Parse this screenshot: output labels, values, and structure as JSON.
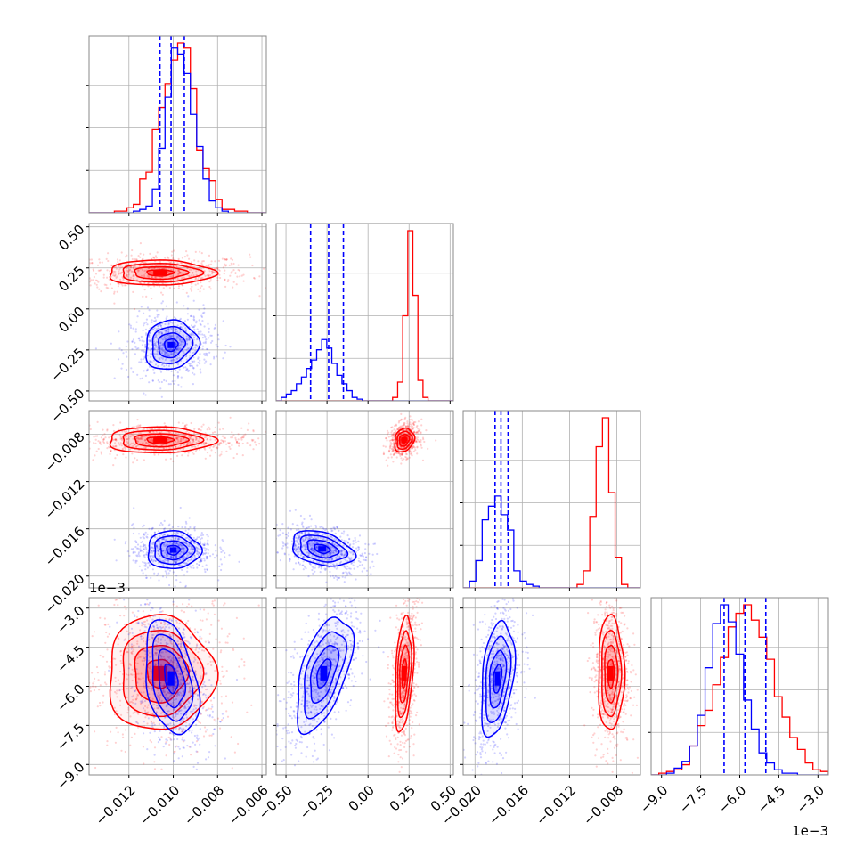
{
  "colors": {
    "red": "#ff0000",
    "blue": "#0000ff",
    "grid": "#b0b0b0",
    "frame": "#888888"
  },
  "chart_data": {
    "type": "corner",
    "grid": true,
    "series": [
      {
        "color": "red"
      },
      {
        "color": "blue"
      }
    ],
    "params": [
      {
        "range": [
          -0.0138,
          -0.0058
        ],
        "ticks": [
          -0.012,
          -0.01,
          -0.008,
          -0.006
        ],
        "tick_labels": [
          "−0.012",
          "−0.010",
          "−0.008",
          "−0.006"
        ],
        "offset_label": ""
      },
      {
        "range": [
          -0.56,
          0.52
        ],
        "ticks": [
          -0.5,
          -0.25,
          0.0,
          0.25,
          0.5
        ],
        "tick_labels": [
          "−0.50",
          "−0.25",
          "0.00",
          "0.25",
          "0.50"
        ],
        "offset_label": ""
      },
      {
        "range": [
          -0.021,
          -0.006
        ],
        "ticks": [
          -0.02,
          -0.016,
          -0.012,
          -0.008
        ],
        "tick_labels": [
          "−0.020",
          "−0.016",
          "−0.012",
          "−0.008"
        ],
        "offset_label": ""
      },
      {
        "range": [
          -0.0094,
          -0.0026
        ],
        "ticks": [
          -0.009,
          -0.0075,
          -0.006,
          -0.0045,
          -0.003
        ],
        "tick_labels": [
          "−9.0",
          "−7.5",
          "−6.0",
          "−4.5",
          "−3.0"
        ],
        "offset_label": "1e−3"
      }
    ],
    "quantiles": [
      [
        -0.0106,
        -0.0101,
        -0.0095
      ],
      [
        -0.35,
        -0.24,
        -0.15
      ],
      [
        -0.0183,
        -0.0178,
        -0.0172
      ],
      [
        -0.0066,
        -0.0058,
        -0.005
      ]
    ],
    "histograms": [
      {
        "edges": [
          -0.0138,
          -0.0058
        ],
        "red": [
          0.0,
          0.0,
          0.0,
          0.0,
          0.01,
          0.01,
          0.03,
          0.05,
          0.2,
          0.24,
          0.49,
          0.62,
          0.76,
          0.9,
          1.0,
          0.97,
          0.73,
          0.37,
          0.26,
          0.19,
          0.08,
          0.02,
          0.02,
          0.01,
          0.01,
          0.0,
          0.0,
          0.0
        ],
        "blue": [
          0.0,
          0.0,
          0.0,
          0.0,
          0.0,
          0.0,
          0.0,
          0.01,
          0.02,
          0.04,
          0.14,
          0.38,
          0.68,
          0.97,
          0.93,
          0.82,
          0.58,
          0.39,
          0.2,
          0.07,
          0.03,
          0.01,
          0.0,
          0.0,
          0.0,
          0.0,
          0.0,
          0.0
        ]
      },
      {
        "edges": [
          -0.56,
          0.52
        ],
        "red": [
          0,
          0,
          0,
          0,
          0,
          0,
          0,
          0,
          0,
          0,
          0,
          0,
          0,
          0,
          0,
          0,
          0,
          0,
          0,
          0,
          0,
          0,
          0.0,
          0.02,
          0.11,
          0.5,
          1.0,
          0.62,
          0.12,
          0.02,
          0,
          0,
          0,
          0,
          0
        ],
        "blue": [
          0,
          0.02,
          0.04,
          0.06,
          0.1,
          0.14,
          0.19,
          0.24,
          0.3,
          0.36,
          0.31,
          0.22,
          0.15,
          0.1,
          0.06,
          0.02,
          0.01,
          0,
          0,
          0,
          0,
          0,
          0,
          0,
          0,
          0,
          0,
          0,
          0,
          0,
          0,
          0,
          0,
          0,
          0
        ]
      },
      {
        "edges": [
          -0.021,
          -0.006
        ],
        "red": [
          0,
          0,
          0,
          0,
          0,
          0,
          0,
          0,
          0,
          0,
          0,
          0,
          0,
          0,
          0,
          0,
          0,
          0,
          0.02,
          0.1,
          0.42,
          0.83,
          1.0,
          0.56,
          0.18,
          0.02,
          0,
          0
        ],
        "blue": [
          0,
          0.04,
          0.16,
          0.4,
          0.48,
          0.54,
          0.43,
          0.34,
          0.1,
          0.04,
          0.02,
          0.01,
          0,
          0,
          0,
          0,
          0,
          0,
          0,
          0,
          0,
          0,
          0,
          0,
          0,
          0,
          0,
          0
        ]
      },
      {
        "edges": [
          -0.0094,
          -0.0026
        ],
        "red": [
          0.0,
          0.01,
          0.02,
          0.03,
          0.06,
          0.17,
          0.29,
          0.38,
          0.53,
          0.69,
          0.87,
          0.95,
          1.0,
          0.91,
          0.81,
          0.68,
          0.46,
          0.34,
          0.22,
          0.15,
          0.07,
          0.03,
          0.02
        ],
        "blue": [
          0.0,
          0.0,
          0.01,
          0.04,
          0.08,
          0.17,
          0.35,
          0.63,
          0.89,
          1.0,
          0.9,
          0.71,
          0.44,
          0.27,
          0.13,
          0.07,
          0.03,
          0.01,
          0.01,
          0.0,
          0.0,
          0.0,
          0.0
        ]
      }
    ],
    "clusters": [
      {
        "row": 1,
        "col": 0,
        "color": "red",
        "center": [
          -0.0106,
          0.22
        ],
        "sigma": [
          0.0012,
          0.038
        ],
        "rho": 0.0,
        "spread": [
          0.002,
          0.055
        ]
      },
      {
        "row": 1,
        "col": 0,
        "color": "blue",
        "center": [
          -0.0101,
          -0.22
        ],
        "sigma": [
          0.0006,
          0.075
        ],
        "rho": 0.1,
        "spread": [
          0.0009,
          0.1
        ]
      },
      {
        "row": 2,
        "col": 0,
        "color": "red",
        "center": [
          -0.0106,
          -0.0085
        ],
        "sigma": [
          0.0012,
          0.00055
        ],
        "rho": 0.0,
        "spread": [
          0.002,
          0.0007
        ]
      },
      {
        "row": 2,
        "col": 0,
        "color": "blue",
        "center": [
          -0.01,
          -0.0178
        ],
        "sigma": [
          0.0006,
          0.0008
        ],
        "rho": 0.0,
        "spread": [
          0.0009,
          0.001
        ]
      },
      {
        "row": 2,
        "col": 1,
        "color": "red",
        "center": [
          0.22,
          -0.0085
        ],
        "sigma": [
          0.03,
          0.0005
        ],
        "rho": 0.2,
        "spread": [
          0.045,
          0.0007
        ]
      },
      {
        "row": 2,
        "col": 1,
        "color": "blue",
        "center": [
          -0.28,
          -0.0177
        ],
        "sigma": [
          0.095,
          0.00075
        ],
        "rho": -0.35,
        "spread": [
          0.13,
          0.001
        ]
      },
      {
        "row": 3,
        "col": 0,
        "color": "red",
        "center": [
          -0.0106,
          -0.0055
        ],
        "sigma": [
          0.0012,
          0.0011
        ],
        "rho": 0.0,
        "spread": [
          0.0018,
          0.0015
        ]
      },
      {
        "row": 3,
        "col": 0,
        "color": "blue",
        "center": [
          -0.0101,
          -0.0057
        ],
        "sigma": [
          0.0006,
          0.0011
        ],
        "rho": -0.35,
        "spread": [
          0.0009,
          0.0015
        ]
      },
      {
        "row": 3,
        "col": 1,
        "color": "red",
        "center": [
          0.22,
          -0.0055
        ],
        "sigma": [
          0.028,
          0.0011
        ],
        "rho": 0.35,
        "spread": [
          0.04,
          0.0015
        ]
      },
      {
        "row": 3,
        "col": 1,
        "color": "blue",
        "center": [
          -0.27,
          -0.0055
        ],
        "sigma": [
          0.085,
          0.0011
        ],
        "rho": 0.55,
        "spread": [
          0.12,
          0.0015
        ]
      },
      {
        "row": 3,
        "col": 2,
        "color": "red",
        "center": [
          -0.0085,
          -0.0055
        ],
        "sigma": [
          0.00055,
          0.0011
        ],
        "rho": 0.0,
        "spread": [
          0.0008,
          0.0015
        ]
      },
      {
        "row": 3,
        "col": 2,
        "color": "blue",
        "center": [
          -0.0181,
          -0.0057
        ],
        "sigma": [
          0.0007,
          0.0011
        ],
        "rho": 0.35,
        "spread": [
          0.001,
          0.0015
        ]
      }
    ]
  }
}
